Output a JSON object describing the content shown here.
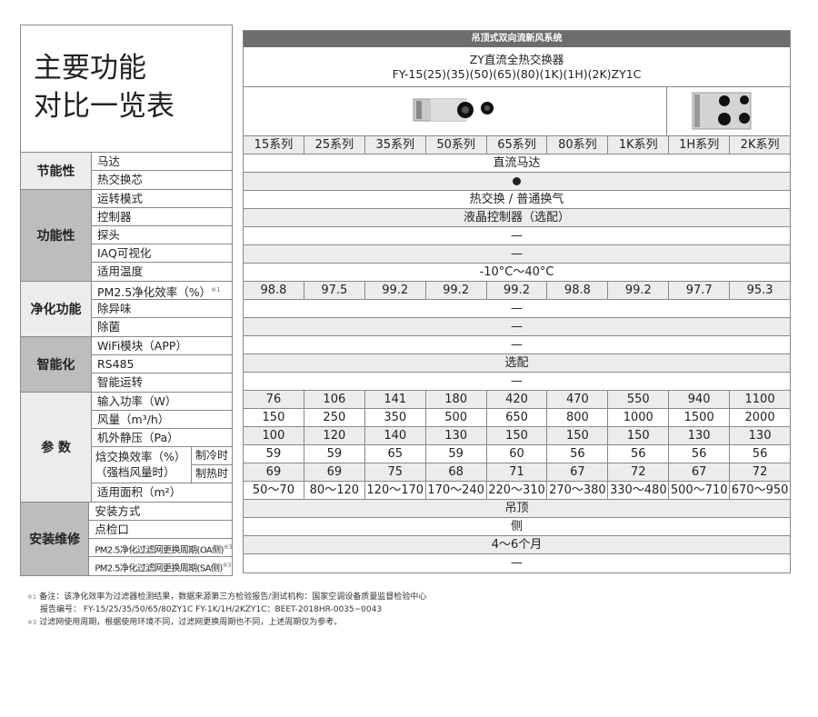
{
  "title_lines": [
    "主要功能",
    "对比一览表"
  ],
  "groups": [
    {
      "name": "节能性",
      "items": [
        "马达",
        "热交换芯"
      ]
    },
    {
      "name": "功能性",
      "items": [
        "运转模式",
        "控制器",
        "探头",
        "IAQ可视化",
        "适用温度"
      ]
    },
    {
      "name": "净化功能",
      "items": [
        "PM2.5净化效率（%）",
        "除异味",
        "除菌"
      ],
      "note_mark": "※1"
    },
    {
      "name": "智能化",
      "items": [
        "WiFi模块（APP）",
        "RS485",
        "智能运转"
      ]
    },
    {
      "name": "参 数",
      "items": [
        "输入功率（W）",
        "风量（m³/h）",
        "机外静压（Pa）",
        "焓交换效率（%）（强档风量时）",
        "适用面积（m²）"
      ],
      "sub": [
        "制冷时",
        "制热时"
      ]
    },
    {
      "name": "安装维修",
      "items": [
        "安装方式",
        "点检口",
        "PM2.5净化过滤网更换周期(OA侧)",
        "PM2.5净化过滤网更换周期(SA侧)"
      ],
      "note_mark": "※3"
    }
  ],
  "header": {
    "system": "吊顶式双向流新风系统",
    "product": "ZY直流全热交换器",
    "model": "FY-15(25)(35)(50)(65)(80)(1K)(1H)(2K)ZY1C"
  },
  "series": [
    "15系列",
    "25系列",
    "35系列",
    "50系列",
    "65系列",
    "80系列",
    "1K系列",
    "1H系列",
    "2K系列"
  ],
  "rows": [
    {
      "merged": "直流马达"
    },
    {
      "merged": "●",
      "icon": "filled-circle"
    },
    {
      "merged": "热交换 / 普通换气"
    },
    {
      "merged": "液晶控制器（选配）"
    },
    {
      "merged": "—"
    },
    {
      "merged": "—"
    },
    {
      "merged": "-10°C～40°C"
    },
    {
      "values": [
        "98.8",
        "97.5",
        "99.2",
        "99.2",
        "99.2",
        "98.8",
        "99.2",
        "97.7",
        "95.3"
      ]
    },
    {
      "merged": "—"
    },
    {
      "merged": "—"
    },
    {
      "merged": "—"
    },
    {
      "merged": "选配"
    },
    {
      "merged": "—"
    },
    {
      "values": [
        "76",
        "106",
        "141",
        "180",
        "420",
        "470",
        "550",
        "940",
        "1100"
      ]
    },
    {
      "values": [
        "150",
        "250",
        "350",
        "500",
        "650",
        "800",
        "1000",
        "1500",
        "2000"
      ]
    },
    {
      "values": [
        "100",
        "120",
        "140",
        "130",
        "150",
        "150",
        "150",
        "130",
        "130"
      ]
    },
    {
      "values": [
        "59",
        "59",
        "65",
        "59",
        "60",
        "56",
        "56",
        "56",
        "56"
      ]
    },
    {
      "values": [
        "69",
        "69",
        "75",
        "68",
        "71",
        "67",
        "72",
        "67",
        "72"
      ]
    },
    {
      "values": [
        "50～70",
        "80～120",
        "120～170",
        "170～240",
        "220～310",
        "270～380",
        "330～480",
        "500～710",
        "670～950"
      ]
    },
    {
      "merged": "吊顶"
    },
    {
      "merged": "侧"
    },
    {
      "merged": "4～6个月"
    },
    {
      "merged": "—"
    }
  ],
  "notes": [
    {
      "mark": "※1",
      "text": "备注：该净化效率为过滤器检测结果，数据来源第三方检验报告/测试机构：国家空调设备质量监督检验中心"
    },
    {
      "mark": "",
      "text": "报告编号： FY-15/25/35/50/65/80ZY1C FY-1K/1H/2KZY1C：BEET-2018HR-0035~0043"
    },
    {
      "mark": "※3",
      "text": "过滤网使用周期，根据使用环境不同，过滤网更换周期也不同，上述周期仅为参考。"
    }
  ]
}
